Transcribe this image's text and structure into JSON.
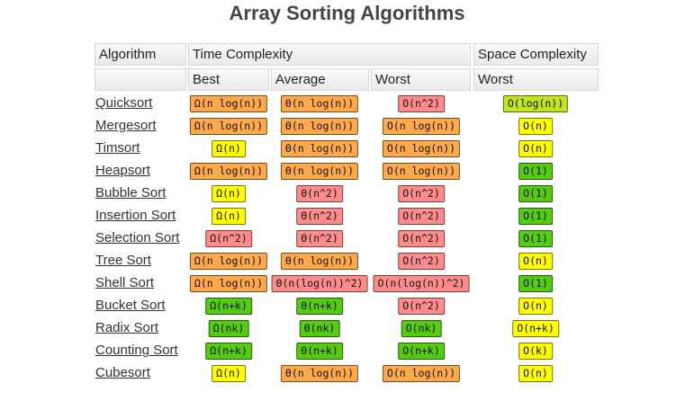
{
  "title": "Array Sorting Algorithms",
  "table": {
    "header": [
      [
        "Algorithm",
        "Time Complexity",
        "Space Complexity"
      ],
      [
        "Best",
        "Average",
        "Worst",
        "Worst"
      ]
    ],
    "rows": [
      {
        "name": "Quicksort",
        "cells": [
          {
            "text": "Ω(n log(n))",
            "color": "#ffa94d"
          },
          {
            "text": "Θ(n log(n))",
            "color": "#ffa94d"
          },
          {
            "text": "O(n^2)",
            "color": "#ff8c8c"
          },
          {
            "text": "O(log(n))",
            "color": "#bfe61f"
          }
        ]
      },
      {
        "name": "Mergesort",
        "cells": [
          {
            "text": "Ω(n log(n))",
            "color": "#ffa94d"
          },
          {
            "text": "Θ(n log(n))",
            "color": "#ffa94d"
          },
          {
            "text": "O(n log(n))",
            "color": "#ffa94d"
          },
          {
            "text": "O(n)",
            "color": "#ffff00"
          }
        ]
      },
      {
        "name": "Timsort",
        "cells": [
          {
            "text": "Ω(n)",
            "color": "#ffff00"
          },
          {
            "text": "Θ(n log(n))",
            "color": "#ffa94d"
          },
          {
            "text": "O(n log(n))",
            "color": "#ffa94d"
          },
          {
            "text": "O(n)",
            "color": "#ffff00"
          }
        ]
      },
      {
        "name": "Heapsort",
        "cells": [
          {
            "text": "Ω(n log(n))",
            "color": "#ffa94d"
          },
          {
            "text": "Θ(n log(n))",
            "color": "#ffa94d"
          },
          {
            "text": "O(n log(n))",
            "color": "#ffa94d"
          },
          {
            "text": "O(1)",
            "color": "#55cc11"
          }
        ]
      },
      {
        "name": "Bubble Sort",
        "cells": [
          {
            "text": "Ω(n)",
            "color": "#ffff00"
          },
          {
            "text": "Θ(n^2)",
            "color": "#ff8c8c"
          },
          {
            "text": "O(n^2)",
            "color": "#ff8c8c"
          },
          {
            "text": "O(1)",
            "color": "#55cc11"
          }
        ]
      },
      {
        "name": "Insertion Sort",
        "cells": [
          {
            "text": "Ω(n)",
            "color": "#ffff00"
          },
          {
            "text": "Θ(n^2)",
            "color": "#ff8c8c"
          },
          {
            "text": "O(n^2)",
            "color": "#ff8c8c"
          },
          {
            "text": "O(1)",
            "color": "#55cc11"
          }
        ]
      },
      {
        "name": "Selection Sort",
        "cells": [
          {
            "text": "Ω(n^2)",
            "color": "#ff8c8c"
          },
          {
            "text": "Θ(n^2)",
            "color": "#ff8c8c"
          },
          {
            "text": "O(n^2)",
            "color": "#ff8c8c"
          },
          {
            "text": "O(1)",
            "color": "#55cc11"
          }
        ]
      },
      {
        "name": "Tree Sort",
        "cells": [
          {
            "text": "Ω(n log(n))",
            "color": "#ffa94d"
          },
          {
            "text": "Θ(n log(n))",
            "color": "#ffa94d"
          },
          {
            "text": "O(n^2)",
            "color": "#ff8c8c"
          },
          {
            "text": "O(n)",
            "color": "#ffff00"
          }
        ]
      },
      {
        "name": "Shell Sort",
        "cells": [
          {
            "text": "Ω(n log(n))",
            "color": "#ffa94d"
          },
          {
            "text": "Θ(n(log(n))^2)",
            "color": "#ff8c8c"
          },
          {
            "text": "O(n(log(n))^2)",
            "color": "#ff8c8c"
          },
          {
            "text": "O(1)",
            "color": "#55cc11"
          }
        ]
      },
      {
        "name": "Bucket Sort",
        "cells": [
          {
            "text": "Ω(n+k)",
            "color": "#55cc11"
          },
          {
            "text": "Θ(n+k)",
            "color": "#55cc11"
          },
          {
            "text": "O(n^2)",
            "color": "#ff8c8c"
          },
          {
            "text": "O(n)",
            "color": "#ffff00"
          }
        ]
      },
      {
        "name": "Radix Sort",
        "cells": [
          {
            "text": "Ω(nk)",
            "color": "#55cc11"
          },
          {
            "text": "Θ(nk)",
            "color": "#55cc11"
          },
          {
            "text": "O(nk)",
            "color": "#55cc11"
          },
          {
            "text": "O(n+k)",
            "color": "#ffff00"
          }
        ]
      },
      {
        "name": "Counting Sort",
        "cells": [
          {
            "text": "Ω(n+k)",
            "color": "#55cc11"
          },
          {
            "text": "Θ(n+k)",
            "color": "#55cc11"
          },
          {
            "text": "O(n+k)",
            "color": "#55cc11"
          },
          {
            "text": "O(k)",
            "color": "#ffff00"
          }
        ]
      },
      {
        "name": "Cubesort",
        "cells": [
          {
            "text": "Ω(n)",
            "color": "#ffff00"
          },
          {
            "text": "Θ(n log(n))",
            "color": "#ffa94d"
          },
          {
            "text": "O(n log(n))",
            "color": "#ffa94d"
          },
          {
            "text": "O(n)",
            "color": "#ffff00"
          }
        ]
      }
    ]
  }
}
